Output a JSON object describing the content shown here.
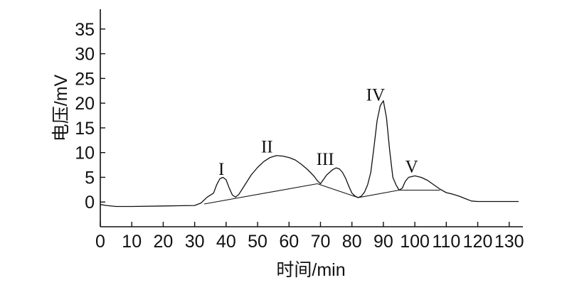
{
  "chart_data": {
    "type": "line",
    "title": "",
    "xlabel": "时间/min",
    "ylabel": "电压/mV",
    "xlim": [
      0,
      133
    ],
    "ylim": [
      -5,
      39
    ],
    "xticks": [
      0,
      10,
      20,
      30,
      40,
      50,
      60,
      70,
      80,
      90,
      100,
      110,
      120,
      130
    ],
    "xtick_labels": [
      "0",
      "10",
      "20",
      "30",
      "40",
      "50",
      "60",
      "70",
      "80",
      "90",
      "100",
      "110",
      "120",
      "130"
    ],
    "yticks": [
      0,
      5,
      10,
      15,
      20,
      25,
      30,
      35
    ],
    "ytick_labels": [
      "0",
      "5",
      "10",
      "15",
      "20",
      "25",
      "30",
      "35"
    ],
    "grid": false,
    "series": [
      {
        "x": [
          0,
          2,
          5,
          10,
          20,
          30,
          32,
          34,
          36,
          37,
          38,
          39,
          40,
          41,
          42,
          43,
          44,
          46,
          48,
          50,
          52,
          54,
          56,
          58,
          60,
          62,
          64,
          66,
          68,
          69,
          70,
          72,
          74,
          75,
          76,
          77,
          78,
          79,
          80,
          81,
          82,
          83,
          84,
          85,
          86,
          87,
          88,
          89,
          90,
          91,
          92,
          93,
          94,
          95,
          96,
          97,
          98,
          100,
          102,
          104,
          106,
          108,
          110,
          112,
          114,
          116,
          118,
          120,
          125,
          130,
          133
        ],
        "values": [
          -0.5,
          -0.7,
          -0.9,
          -0.9,
          -0.8,
          -0.7,
          -0.2,
          1.0,
          1.8,
          3.5,
          4.7,
          5.0,
          4.5,
          2.8,
          1.4,
          1.0,
          1.5,
          3.5,
          5.5,
          7.0,
          8.2,
          9.0,
          9.4,
          9.3,
          9.0,
          8.5,
          7.6,
          6.5,
          5.2,
          4.3,
          3.7,
          5.5,
          6.6,
          6.9,
          6.7,
          6.0,
          4.8,
          3.2,
          1.8,
          1.2,
          0.9,
          1.2,
          2.0,
          3.5,
          6.0,
          11.0,
          16.5,
          19.5,
          20.5,
          17.0,
          10.5,
          5.0,
          3.5,
          2.4,
          2.8,
          4.2,
          5.0,
          5.3,
          5.0,
          4.4,
          3.5,
          2.6,
          1.9,
          1.6,
          1.2,
          0.7,
          0.2,
          0.1,
          0.1,
          0.1,
          0.1
        ]
      }
    ],
    "baselines": [
      {
        "x": [
          33,
          69
        ],
        "values": [
          -0.4,
          3.7
        ]
      },
      {
        "x": [
          69,
          82
        ],
        "values": [
          3.7,
          0.9
        ]
      },
      {
        "x": [
          82,
          95
        ],
        "values": [
          0.9,
          2.4
        ]
      },
      {
        "x": [
          95,
          108
        ],
        "values": [
          2.4,
          2.4
        ]
      }
    ],
    "annotations": [
      {
        "text": "I",
        "x": 38.5,
        "y": 5.5
      },
      {
        "text": "II",
        "x": 53,
        "y": 10
      },
      {
        "text": "III",
        "x": 71.5,
        "y": 7.5
      },
      {
        "text": "IV",
        "x": 87.5,
        "y": 20.5
      },
      {
        "text": "V",
        "x": 99,
        "y": 6
      }
    ]
  }
}
